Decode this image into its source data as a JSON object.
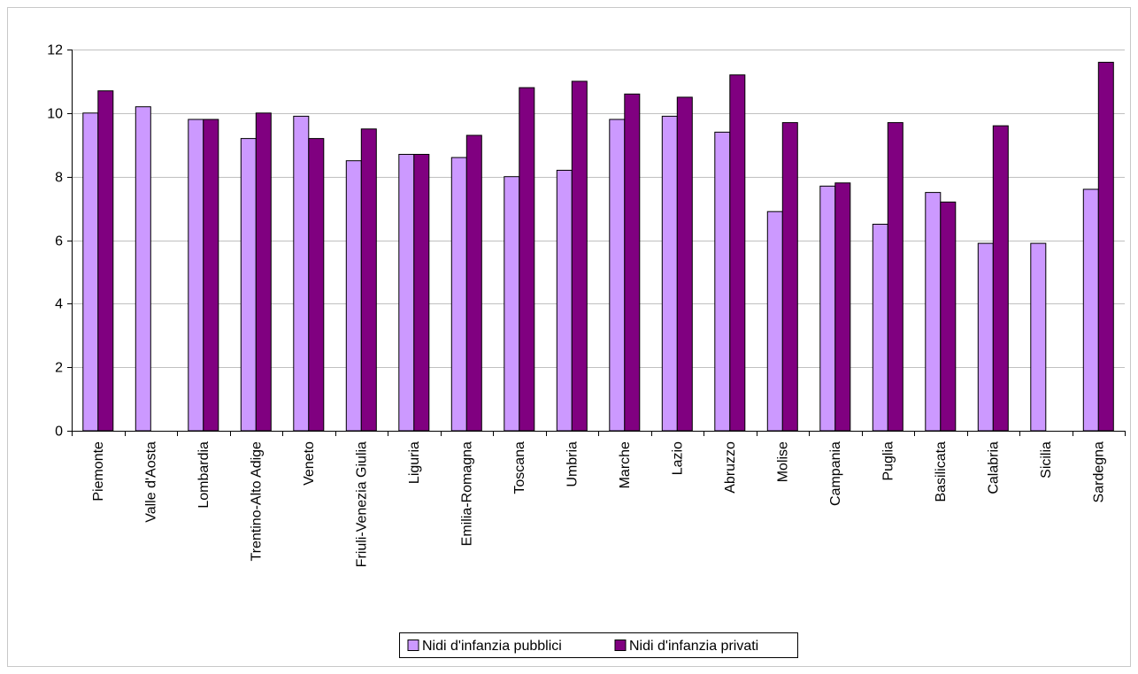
{
  "chart_data": {
    "type": "bar",
    "title": "",
    "xlabel": "",
    "ylabel": "",
    "ylim": [
      0,
      12
    ],
    "yticks": [
      0,
      2,
      4,
      6,
      8,
      10,
      12
    ],
    "grid": "horizontal",
    "legend_position": "bottom",
    "categories": [
      "Piemonte",
      "Valle d'Aosta",
      "Lombardia",
      "Trentino-Alto Adige",
      "Veneto",
      "Friuli-Venezia Giulia",
      "Liguria",
      "Emilia-Romagna",
      "Toscana",
      "Umbria",
      "Marche",
      "Lazio",
      "Abruzzo",
      "Molise",
      "Campania",
      "Puglia",
      "Basilicata",
      "Calabria",
      "Sicilia",
      "Sardegna"
    ],
    "series": [
      {
        "name": "Nidi d'infanzia pubblici",
        "color": "#cc99ff",
        "values": [
          10.0,
          10.2,
          9.8,
          9.2,
          9.9,
          8.5,
          8.7,
          8.6,
          8.0,
          8.2,
          9.8,
          9.9,
          9.4,
          6.9,
          7.7,
          6.5,
          7.5,
          5.9,
          5.9,
          7.6
        ]
      },
      {
        "name": "Nidi d'infanzia privati",
        "color": "#800080",
        "values": [
          10.7,
          0,
          9.8,
          10.0,
          9.2,
          9.5,
          8.7,
          9.3,
          10.8,
          11.0,
          10.6,
          10.5,
          11.2,
          9.7,
          7.8,
          9.7,
          7.2,
          9.6,
          0,
          11.6
        ]
      }
    ]
  }
}
